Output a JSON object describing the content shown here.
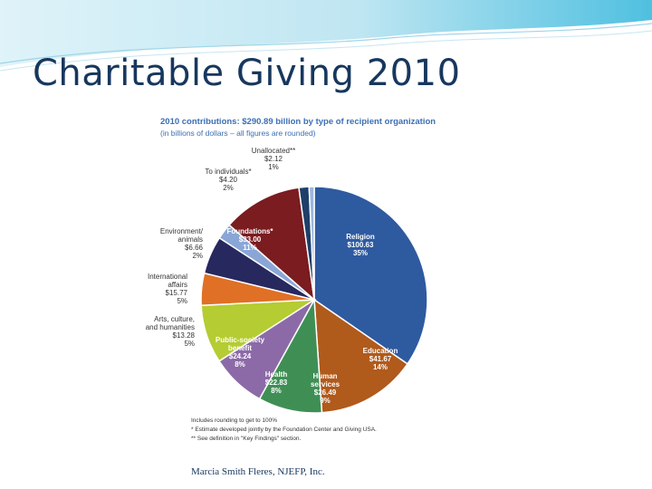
{
  "slide": {
    "title": "Charitable Giving 2010",
    "footer": "Marcia Smith Fleres, NJEFP, Inc."
  },
  "figure": {
    "title": "2010 contributions: $290.89 billion by type of recipient organization",
    "subtitle": "(in billions of dollars – all figures are rounded)",
    "notes": [
      "Includes rounding to get to 100%",
      "* Estimate developed jointly by the Foundation Center and Giving USA.",
      "** See definition in \"Key Findings\" section."
    ]
  },
  "chart_data": {
    "type": "pie",
    "title": "2010 contributions: $290.89 billion by type of recipient organization",
    "subtitle": "(in billions of dollars – all figures are rounded)",
    "unit": "billions of dollars",
    "slices": [
      {
        "label": "Religion",
        "value_text": "$100.63",
        "value": 100.63,
        "pct": "35%",
        "color": "#2e5aa0",
        "label_color": "#ffffff"
      },
      {
        "label": "Education",
        "value_text": "$41.67",
        "value": 41.67,
        "pct": "14%",
        "color": "#b05a1c",
        "label_color": "#ffffff"
      },
      {
        "label": "Human services",
        "value_text": "$26.49",
        "value": 26.49,
        "pct": "9%",
        "color": "#3f8f55",
        "label_color": "#ffffff"
      },
      {
        "label": "Health",
        "value_text": "$22.83",
        "value": 22.83,
        "pct": "8%",
        "color": "#8c6aa8",
        "label_color": "#ffffff"
      },
      {
        "label": "Public-society benefit",
        "value_text": "$24.24",
        "value": 24.24,
        "pct": "8%",
        "color": "#b5cc32",
        "label_color": "#ffffff"
      },
      {
        "label": "Arts, culture, and humanities",
        "value_text": "$13.28",
        "value": 13.28,
        "pct": "5%",
        "color": "#e07025",
        "label_color": "#333333"
      },
      {
        "label": "International affairs",
        "value_text": "$15.77",
        "value": 15.77,
        "pct": "5%",
        "color": "#27285e",
        "label_color": "#333333"
      },
      {
        "label": "Environment/ animals",
        "value_text": "$6.66",
        "value": 6.66,
        "pct": "2%",
        "color": "#8aa6d6",
        "label_color": "#333333"
      },
      {
        "label": "Foundations*",
        "value_text": "$33.00",
        "value": 33.0,
        "pct": "11%",
        "color": "#7a1c20",
        "label_color": "#ffffff"
      },
      {
        "label": "To individuals*",
        "value_text": "$4.20",
        "value": 4.2,
        "pct": "2%",
        "color": "#1f3f6a",
        "label_color": "#333333"
      },
      {
        "label": "Unallocated**",
        "value_text": "$2.12",
        "value": 2.12,
        "pct": "1%",
        "color": "#9bb7dd",
        "label_color": "#333333"
      }
    ]
  }
}
